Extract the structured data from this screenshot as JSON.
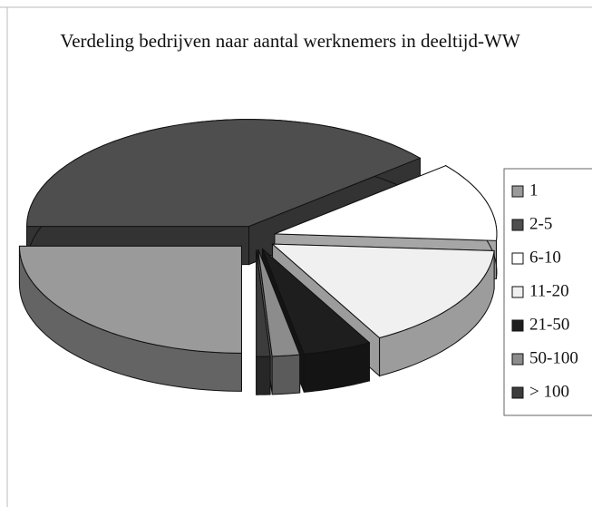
{
  "chart_data": {
    "type": "pie3d",
    "title": "Verdeling bedrijven naar aantal werknemers in deeltijd-WW",
    "categories": [
      "1",
      "2-5",
      "6-10",
      "11-20",
      "21-50",
      "50-100",
      "> 100"
    ],
    "values": [
      25,
      39,
      12,
      16,
      5,
      2,
      1
    ],
    "colors": [
      "#9a9a9a",
      "#4e4e4e",
      "#ffffff",
      "#f0f0f0",
      "#1e1e1e",
      "#8c8c8c",
      "#3c3c3c"
    ],
    "legend": "right"
  }
}
